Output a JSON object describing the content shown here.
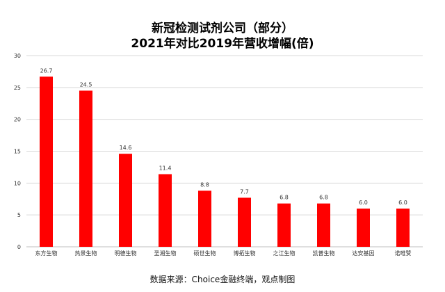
{
  "title": {
    "line1": "新冠检测试剂公司（部分）",
    "line2": "2021年对比2019年营收增幅(倍)"
  },
  "source": "数据来源：Choice金融终端，观点制图",
  "colors": {
    "bar": "#ff0000",
    "grid": "#d9d9d9",
    "axis": "#bfbfbf",
    "text": "#333333"
  },
  "chart_data": {
    "type": "bar",
    "title": "新冠检测试剂公司（部分） 2021年对比2019年营收增幅(倍)",
    "categories": [
      "东方生物",
      "热景生物",
      "明德生物",
      "圣湘生物",
      "硕世生物",
      "博拓生物",
      "之江生物",
      "凯普生物",
      "达安基因",
      "诺唯赞"
    ],
    "values": [
      26.7,
      24.5,
      14.6,
      11.4,
      8.8,
      7.7,
      6.8,
      6.8,
      6.0,
      6.0
    ],
    "value_labels": [
      "26.7",
      "24.5",
      "14.6",
      "11.4",
      "8.8",
      "7.7",
      "6.8",
      "6.8",
      "6.0",
      "6.0"
    ],
    "ylim": [
      0,
      30
    ],
    "yticks": [
      "0",
      "5",
      "10",
      "15",
      "20",
      "25",
      "30"
    ],
    "xlabel": "",
    "ylabel": "",
    "grid": true,
    "legend": "none"
  }
}
